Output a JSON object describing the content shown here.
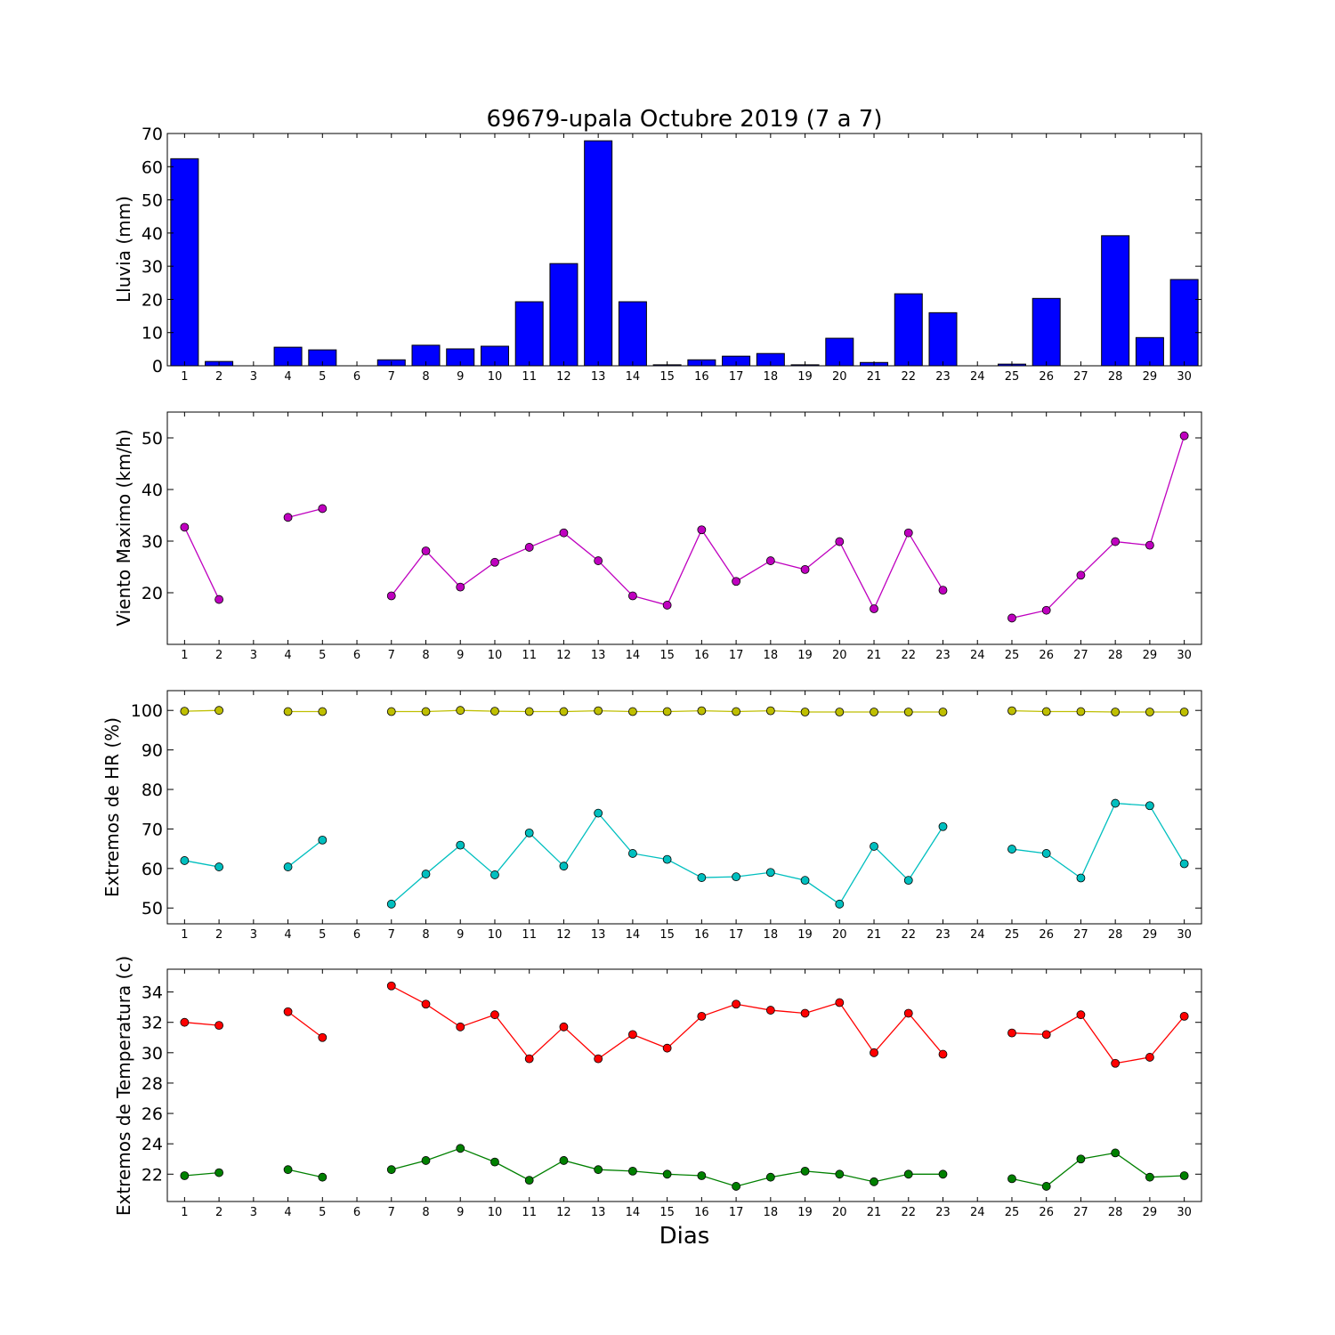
{
  "chart_data": [
    {
      "type": "bar",
      "title": "69679-upala Octubre 2019  (7 a 7)",
      "ylabel": "Lluvia (mm)",
      "ylim": [
        0,
        70
      ],
      "yticks": [
        0,
        10,
        20,
        30,
        40,
        50,
        60,
        70
      ],
      "categories": [
        "1",
        "2",
        "3",
        "4",
        "5",
        "6",
        "7",
        "8",
        "9",
        "10",
        "11",
        "12",
        "13",
        "14",
        "15",
        "16",
        "17",
        "18",
        "19",
        "20",
        "21",
        "22",
        "23",
        "24",
        "25",
        "26",
        "27",
        "28",
        "29",
        "30"
      ],
      "values": [
        62.4,
        1.3,
        0,
        5.6,
        4.8,
        0,
        1.8,
        6.2,
        5.1,
        5.9,
        19.3,
        30.8,
        67.8,
        19.3,
        0.3,
        1.8,
        2.9,
        3.7,
        0.3,
        8.3,
        1.0,
        21.7,
        16.0,
        0,
        0.5,
        20.3,
        0,
        39.2,
        8.5,
        26.0
      ],
      "bar_color": "#0000ff"
    },
    {
      "type": "line",
      "ylabel": "Viento Maximo (km/h)",
      "ylim": [
        10,
        55
      ],
      "yticks": [
        20,
        30,
        40,
        50
      ],
      "x": [
        1,
        2,
        3,
        4,
        5,
        6,
        7,
        8,
        9,
        10,
        11,
        12,
        13,
        14,
        15,
        16,
        17,
        18,
        19,
        20,
        21,
        22,
        23,
        24,
        25,
        26,
        27,
        28,
        29,
        30
      ],
      "series": [
        {
          "color": "#bf00bf",
          "values": [
            32.7,
            18.7,
            null,
            34.6,
            36.3,
            null,
            19.4,
            28.1,
            21.1,
            25.9,
            28.8,
            31.6,
            26.2,
            19.4,
            17.6,
            32.2,
            22.2,
            26.2,
            24.5,
            29.9,
            16.9,
            31.6,
            20.5,
            null,
            15.1,
            16.6,
            23.4,
            29.9,
            29.2,
            50.4
          ]
        }
      ]
    },
    {
      "type": "line",
      "ylabel": "Extremos de HR (%)",
      "ylim": [
        46,
        105
      ],
      "yticks": [
        50,
        60,
        70,
        80,
        90,
        100
      ],
      "x": [
        1,
        2,
        3,
        4,
        5,
        6,
        7,
        8,
        9,
        10,
        11,
        12,
        13,
        14,
        15,
        16,
        17,
        18,
        19,
        20,
        21,
        22,
        23,
        24,
        25,
        26,
        27,
        28,
        29,
        30
      ],
      "series": [
        {
          "color": "#bfbf00",
          "values": [
            99.8,
            100,
            null,
            99.7,
            99.7,
            null,
            99.7,
            99.7,
            100,
            99.8,
            99.7,
            99.7,
            99.9,
            99.7,
            99.7,
            99.9,
            99.7,
            99.9,
            99.6,
            99.6,
            99.6,
            99.6,
            99.6,
            null,
            99.9,
            99.7,
            99.7,
            99.6,
            99.6,
            99.6
          ]
        },
        {
          "color": "#00bfbf",
          "values": [
            62.0,
            60.4,
            null,
            60.4,
            67.2,
            null,
            51.0,
            58.6,
            65.9,
            58.4,
            69.0,
            60.6,
            74.0,
            63.8,
            62.3,
            57.7,
            57.9,
            59.0,
            57.0,
            51.0,
            65.6,
            57.0,
            70.6,
            null,
            64.9,
            63.8,
            57.6,
            76.5,
            75.9,
            61.2
          ]
        }
      ]
    },
    {
      "type": "line",
      "ylabel": "Extremos de Temperatura (c)",
      "xlabel": "Dias",
      "ylim": [
        20.2,
        35.5
      ],
      "yticks": [
        22,
        24,
        26,
        28,
        30,
        32,
        34
      ],
      "x": [
        1,
        2,
        3,
        4,
        5,
        6,
        7,
        8,
        9,
        10,
        11,
        12,
        13,
        14,
        15,
        16,
        17,
        18,
        19,
        20,
        21,
        22,
        23,
        24,
        25,
        26,
        27,
        28,
        29,
        30
      ],
      "series": [
        {
          "color": "#ff0000",
          "values": [
            32.0,
            31.8,
            null,
            32.7,
            31.0,
            null,
            34.4,
            33.2,
            31.7,
            32.5,
            29.6,
            31.7,
            29.6,
            31.2,
            30.3,
            32.4,
            33.2,
            32.8,
            32.6,
            33.3,
            30.0,
            32.6,
            29.9,
            null,
            31.3,
            31.2,
            32.5,
            29.3,
            29.7,
            32.4
          ]
        },
        {
          "color": "#008000",
          "values": [
            21.9,
            22.1,
            null,
            22.3,
            21.8,
            null,
            22.3,
            22.9,
            23.7,
            22.8,
            21.6,
            22.9,
            22.3,
            22.2,
            22.0,
            21.9,
            21.2,
            21.8,
            22.2,
            22.0,
            21.5,
            22.0,
            22.0,
            null,
            21.7,
            21.2,
            23.0,
            23.4,
            21.8,
            21.9
          ]
        }
      ]
    }
  ]
}
